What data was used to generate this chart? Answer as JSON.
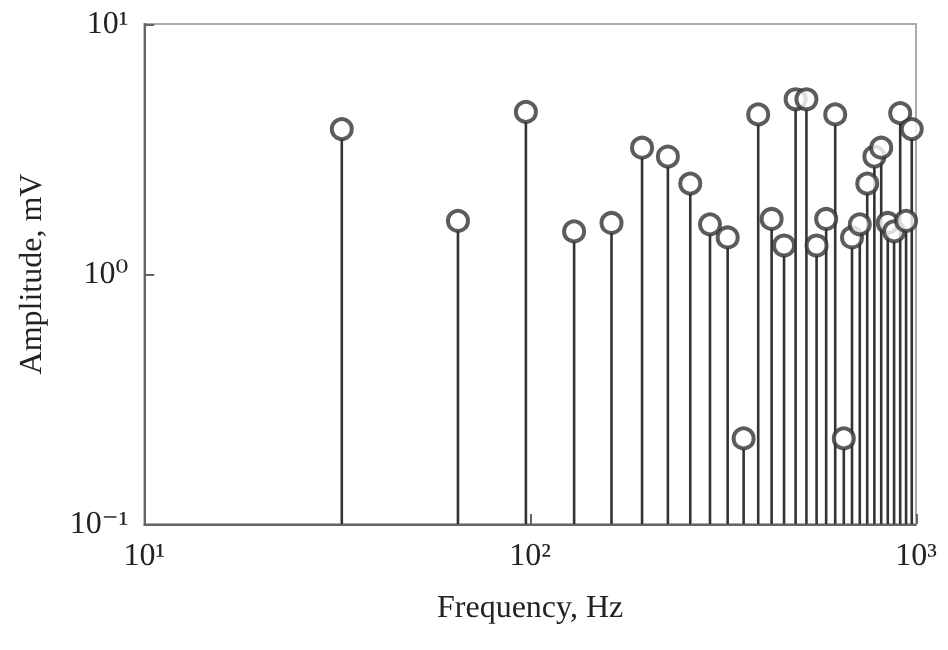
{
  "chart_data": {
    "type": "lollipop",
    "xlabel": "Frequency, Hz",
    "ylabel": "Amplitude, mV",
    "x": [
      32.5,
      65,
      97.5,
      130,
      162.5,
      195,
      227.5,
      260,
      292.5,
      325,
      357.5,
      390,
      422.5,
      455,
      487.5,
      520,
      552.5,
      585,
      617.5,
      650,
      682.5,
      715,
      747.5,
      780,
      812.5,
      845,
      877.5,
      910,
      942.5,
      975
    ],
    "series": [
      {
        "color": "#333333",
        "values": [
          3.8,
          1.63,
          4.45,
          1.48,
          1.6,
          3.2,
          2.95,
          2.3,
          1.58,
          1.4,
          0.22,
          4.35,
          1.66,
          1.3,
          5.0,
          5.0,
          1.3,
          1.66,
          4.35,
          0.22,
          1.4,
          1.58,
          2.3,
          2.95,
          3.2,
          1.6,
          1.48,
          4.4,
          1.63,
          3.8
        ]
      }
    ],
    "xlim": [
      10,
      1000
    ],
    "ylim": [
      0.1,
      10
    ],
    "xticks": [
      {
        "value": 10,
        "label": "10¹"
      },
      {
        "value": 100,
        "label": "10²"
      },
      {
        "value": 1000,
        "label": "10³"
      }
    ],
    "yticks": [
      {
        "value": 0.1,
        "label": "10⁻¹"
      },
      {
        "value": 1,
        "label": "10⁰"
      },
      {
        "value": 10,
        "label": "10¹"
      }
    ],
    "log": "xy",
    "grid": false,
    "marker": "circle"
  }
}
